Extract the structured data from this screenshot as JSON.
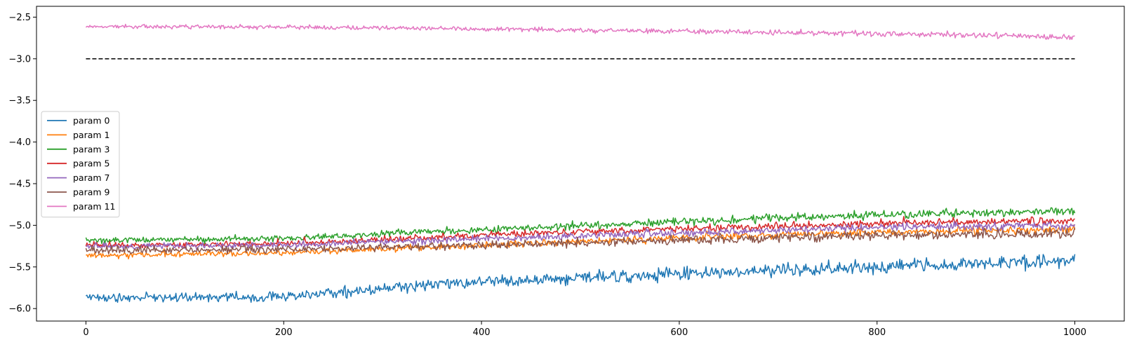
{
  "chart_data": {
    "type": "line",
    "title": "",
    "xlabel": "",
    "ylabel": "",
    "xlim": [
      -50,
      1050
    ],
    "ylim": [
      -6.15,
      -2.37
    ],
    "x_ticks": [
      0,
      200,
      400,
      600,
      800,
      1000
    ],
    "y_ticks": [
      -2.5,
      -3.0,
      -3.5,
      -4.0,
      -4.5,
      -5.0,
      -5.5,
      -6.0
    ],
    "grid": false,
    "legend_position": "center-left",
    "n_points": 1001,
    "reference_line": {
      "y": -3.0,
      "x_range": [
        0,
        1000
      ],
      "style": "dashed",
      "color": "#000000"
    },
    "series": [
      {
        "name": "param 0",
        "color": "#1f77b4",
        "trend": [
          [
            0,
            -5.87
          ],
          [
            180,
            -5.86
          ],
          [
            400,
            -5.68
          ],
          [
            600,
            -5.58
          ],
          [
            800,
            -5.5
          ],
          [
            1000,
            -5.43
          ]
        ],
        "noise": 0.05
      },
      {
        "name": "param 1",
        "color": "#ff7f0e",
        "trend": [
          [
            0,
            -5.36
          ],
          [
            200,
            -5.33
          ],
          [
            400,
            -5.24
          ],
          [
            600,
            -5.15
          ],
          [
            800,
            -5.08
          ],
          [
            1000,
            -5.05
          ]
        ],
        "noise": 0.028
      },
      {
        "name": "param 3",
        "color": "#2ca02c",
        "trend": [
          [
            0,
            -5.18
          ],
          [
            200,
            -5.16
          ],
          [
            400,
            -5.05
          ],
          [
            600,
            -4.96
          ],
          [
            800,
            -4.87
          ],
          [
            1000,
            -4.83
          ]
        ],
        "noise": 0.03
      },
      {
        "name": "param 5",
        "color": "#d62728",
        "trend": [
          [
            0,
            -5.24
          ],
          [
            200,
            -5.22
          ],
          [
            400,
            -5.12
          ],
          [
            600,
            -5.04
          ],
          [
            800,
            -4.98
          ],
          [
            1000,
            -4.94
          ]
        ],
        "noise": 0.028
      },
      {
        "name": "param 7",
        "color": "#9467bd",
        "trend": [
          [
            0,
            -5.25
          ],
          [
            200,
            -5.24
          ],
          [
            400,
            -5.16
          ],
          [
            600,
            -5.09
          ],
          [
            800,
            -5.02
          ],
          [
            1000,
            -5.0
          ]
        ],
        "noise": 0.03
      },
      {
        "name": "param 9",
        "color": "#8c564b",
        "trend": [
          [
            0,
            -5.3
          ],
          [
            200,
            -5.29
          ],
          [
            400,
            -5.24
          ],
          [
            600,
            -5.18
          ],
          [
            800,
            -5.12
          ],
          [
            1000,
            -5.1
          ]
        ],
        "noise": 0.035
      },
      {
        "name": "param 11",
        "color": "#e377c2",
        "trend": [
          [
            0,
            -2.61
          ],
          [
            200,
            -2.62
          ],
          [
            400,
            -2.64
          ],
          [
            600,
            -2.67
          ],
          [
            800,
            -2.7
          ],
          [
            1000,
            -2.74
          ]
        ],
        "noise": 0.02
      }
    ]
  }
}
